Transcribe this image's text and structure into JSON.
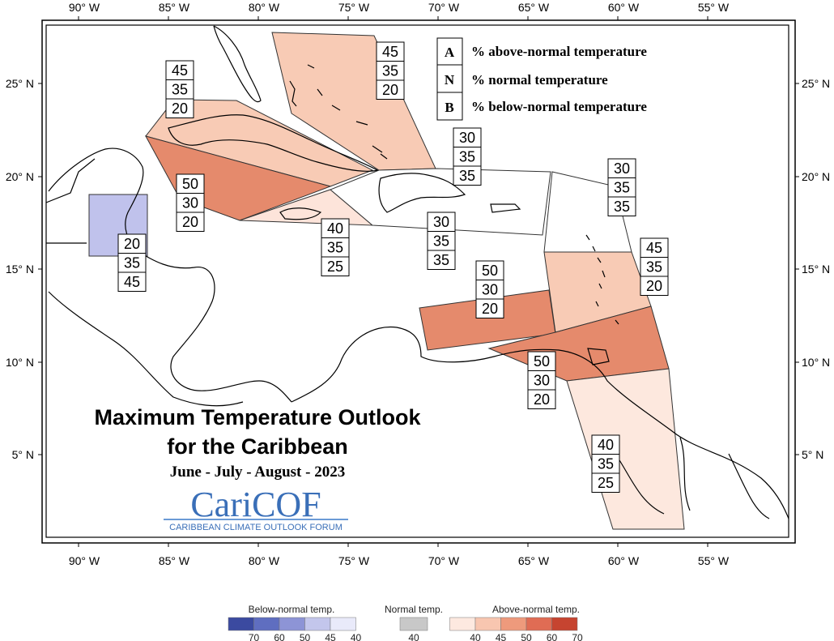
{
  "map": {
    "title_line1": "Maximum Temperature Outlook",
    "title_line2": "for the Caribbean",
    "season": "June - July - August - 2023",
    "logo_text": "CariCOF",
    "logo_subtitle": "CARIBBEAN CLIMATE OUTLOOK FORUM",
    "top_axis": [
      "90° W",
      "85° W",
      "80° W",
      "75° W",
      "70° W",
      "65° W",
      "60° W",
      "55° W"
    ],
    "bottom_axis": [
      "90° W",
      "85° W",
      "80° W",
      "75° W",
      "70° W",
      "65° W",
      "60° W",
      "55° W"
    ],
    "left_axis": [
      "25° N",
      "20° N",
      "15° N",
      "10° N",
      "5° N"
    ],
    "right_axis": [
      "25° N",
      "20° N",
      "15° N",
      "10° N",
      "5° N"
    ],
    "legend_key": [
      {
        "letter": "A",
        "text": "% above-normal temperature"
      },
      {
        "letter": "N",
        "text": "% normal temperature"
      },
      {
        "letter": "B",
        "text": "% below-normal temperature"
      }
    ],
    "regions": [
      {
        "id": "bahamas",
        "A": "45",
        "N": "35",
        "B": "20"
      },
      {
        "id": "cuba",
        "A": "45",
        "N": "35",
        "B": "20"
      },
      {
        "id": "cayman-western",
        "A": "50",
        "N": "30",
        "B": "20"
      },
      {
        "id": "belize",
        "A": "20",
        "N": "35",
        "B": "45"
      },
      {
        "id": "jamaica",
        "A": "40",
        "N": "35",
        "B": "25"
      },
      {
        "id": "turks-caicos",
        "A": "30",
        "N": "35",
        "B": "35"
      },
      {
        "id": "hispaniola-puerto-rico",
        "A": "30",
        "N": "35",
        "B": "35"
      },
      {
        "id": "northern-leewards",
        "A": "30",
        "N": "35",
        "B": "35"
      },
      {
        "id": "windwards",
        "A": "45",
        "N": "35",
        "B": "20"
      },
      {
        "id": "abc-islands",
        "A": "50",
        "N": "30",
        "B": "20"
      },
      {
        "id": "trinidad-guyana",
        "A": "50",
        "N": "30",
        "B": "20"
      },
      {
        "id": "guianas",
        "A": "40",
        "N": "35",
        "B": "25"
      }
    ]
  },
  "legend": {
    "below_title": "Below-normal temp.",
    "normal_title": "Normal temp.",
    "above_title": "Above-normal temp.",
    "below_ticks": [
      "70",
      "60",
      "50",
      "45",
      "40"
    ],
    "normal_ticks": [
      "40"
    ],
    "above_ticks": [
      "40",
      "45",
      "50",
      "60",
      "70"
    ],
    "below_colors": [
      "#3b4aa0",
      "#5f6ec0",
      "#8d94d6",
      "#c3c6ec",
      "#e9eafa"
    ],
    "normal_color": "#c8c8c8",
    "above_colors": [
      "#fde9e0",
      "#f8c6b0",
      "#ee9a7c",
      "#e06c54",
      "#c64430"
    ]
  }
}
